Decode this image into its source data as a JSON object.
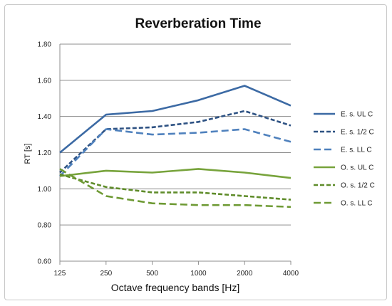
{
  "chart_data": {
    "type": "line",
    "title": "Reverberation Time",
    "xlabel": "Octave frequency bands [Hz]",
    "ylabel": "RT [s]",
    "categories": [
      "125",
      "250",
      "500",
      "1000",
      "2000",
      "4000"
    ],
    "ylim": [
      0.6,
      1.8
    ],
    "yticks": [
      "0.60",
      "0.80",
      "1.00",
      "1.20",
      "1.40",
      "1.60",
      "1.80"
    ],
    "grid": true,
    "legend_position": "right",
    "series": [
      {
        "name": "E. s. UL C",
        "values": [
          1.2,
          1.41,
          1.43,
          1.49,
          1.57,
          1.46
        ],
        "color": "#3c6aa4",
        "dash": "solid"
      },
      {
        "name": "E. s. 1/2 C",
        "values": [
          1.09,
          1.33,
          1.34,
          1.37,
          1.43,
          1.35
        ],
        "color": "#2e5283",
        "dash": "medium"
      },
      {
        "name": "E. s. LL C",
        "values": [
          1.07,
          1.33,
          1.3,
          1.31,
          1.33,
          1.26
        ],
        "color": "#4f81bd",
        "dash": "long"
      },
      {
        "name": "O. s. UL C",
        "values": [
          1.07,
          1.1,
          1.09,
          1.11,
          1.09,
          1.06
        ],
        "color": "#77a33b",
        "dash": "solid"
      },
      {
        "name": "O. s. 1/2 C",
        "values": [
          1.08,
          1.01,
          0.98,
          0.98,
          0.96,
          0.94
        ],
        "color": "#5f8c2a",
        "dash": "medium"
      },
      {
        "name": "O. s. LL C",
        "values": [
          1.11,
          0.96,
          0.92,
          0.91,
          0.91,
          0.9
        ],
        "color": "#6e9a34",
        "dash": "long"
      }
    ]
  }
}
